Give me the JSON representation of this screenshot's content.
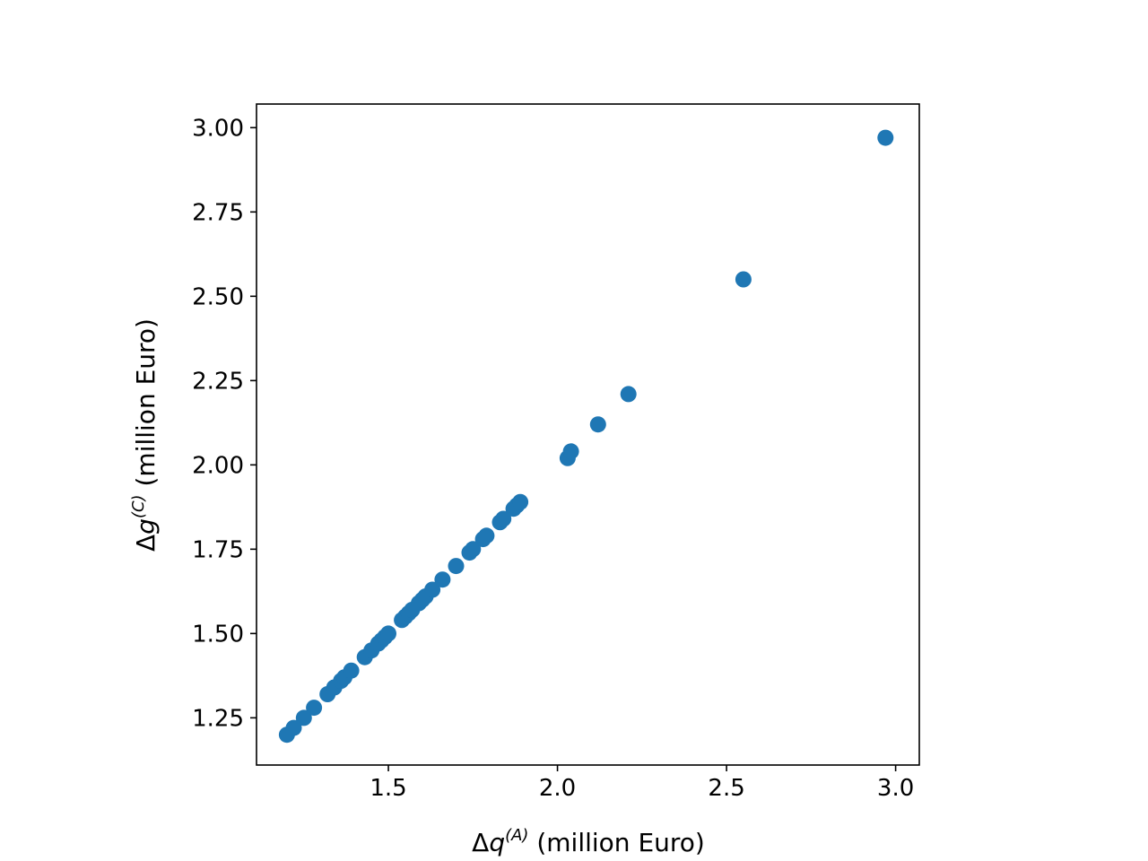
{
  "chart_data": {
    "type": "scatter",
    "xlabel": {
      "prefix": "Δ",
      "var": "q",
      "sup": "(A)",
      "unit": " (million Euro)"
    },
    "ylabel": {
      "prefix": "Δ",
      "var": "g",
      "sup": "(C)",
      "unit": " (million Euro)"
    },
    "xlim": [
      1.11,
      3.07
    ],
    "ylim": [
      1.11,
      3.07
    ],
    "xticks": [
      1.5,
      2.0,
      2.5,
      3.0
    ],
    "xtick_labels": [
      "1.5",
      "2.0",
      "2.5",
      "3.0"
    ],
    "yticks": [
      1.25,
      1.5,
      1.75,
      2.0,
      2.25,
      2.5,
      2.75,
      3.0
    ],
    "ytick_labels": [
      "1.25",
      "1.50",
      "1.75",
      "2.00",
      "2.25",
      "2.50",
      "2.75",
      "3.00"
    ],
    "grid": false,
    "color": "#1f77b4",
    "x": [
      1.2,
      1.22,
      1.25,
      1.28,
      1.32,
      1.34,
      1.36,
      1.37,
      1.39,
      1.43,
      1.45,
      1.47,
      1.48,
      1.49,
      1.5,
      1.54,
      1.55,
      1.56,
      1.57,
      1.59,
      1.6,
      1.61,
      1.63,
      1.66,
      1.7,
      1.74,
      1.75,
      1.78,
      1.79,
      1.83,
      1.84,
      1.87,
      1.88,
      1.89,
      2.03,
      2.04,
      2.12,
      2.21,
      2.55,
      2.97
    ],
    "y": [
      1.2,
      1.22,
      1.25,
      1.28,
      1.32,
      1.34,
      1.36,
      1.37,
      1.39,
      1.43,
      1.45,
      1.47,
      1.48,
      1.49,
      1.5,
      1.54,
      1.55,
      1.56,
      1.57,
      1.59,
      1.6,
      1.61,
      1.63,
      1.66,
      1.7,
      1.74,
      1.75,
      1.78,
      1.79,
      1.83,
      1.84,
      1.87,
      1.88,
      1.89,
      2.02,
      2.04,
      2.12,
      2.21,
      2.55,
      2.97
    ]
  }
}
